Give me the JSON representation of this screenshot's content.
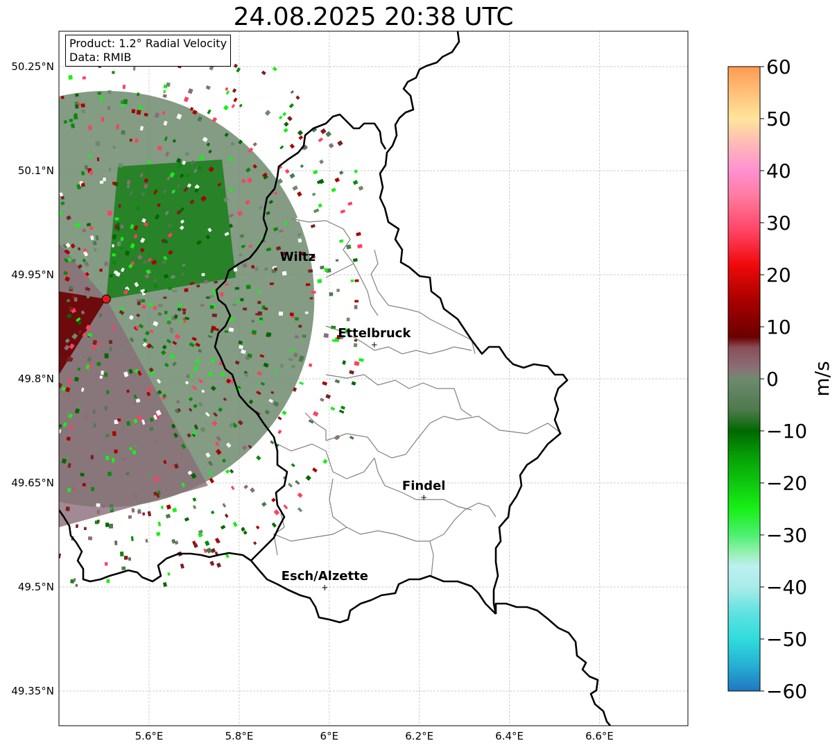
{
  "title": "24.08.2025 20:38 UTC",
  "info_box": {
    "product": "Product: 1.2° Radial Velocity",
    "data": "Data: RMIB"
  },
  "cities": [
    {
      "name": "Wiltz",
      "lon": 5.93,
      "lat": 49.97,
      "marker": false
    },
    {
      "name": "Ettelbruck",
      "lon": 6.1,
      "lat": 49.85,
      "marker": true
    },
    {
      "name": "Findel",
      "lon": 6.21,
      "lat": 49.63,
      "marker": true
    },
    {
      "name": "Esch/Alzette",
      "lon": 5.99,
      "lat": 49.5,
      "marker": true
    }
  ],
  "radar_site": {
    "lon": 5.505,
    "lat": 49.915,
    "color": "#e8161b"
  },
  "axes": {
    "lon_ticks": [
      {
        "value": 5.6,
        "label": "5.6°E"
      },
      {
        "value": 5.8,
        "label": "5.8°E"
      },
      {
        "value": 6.0,
        "label": "6°E"
      },
      {
        "value": 6.2,
        "label": "6.2°E"
      },
      {
        "value": 6.4,
        "label": "6.4°E"
      },
      {
        "value": 6.6,
        "label": "6.6°E"
      }
    ],
    "lat_ticks": [
      {
        "value": 50.25,
        "label": "50.25°N"
      },
      {
        "value": 50.1,
        "label": "50.1°N"
      },
      {
        "value": 49.95,
        "label": "49.95°N"
      },
      {
        "value": 49.8,
        "label": "49.8°N"
      },
      {
        "value": 49.65,
        "label": "49.65°N"
      },
      {
        "value": 49.5,
        "label": "49.5°N"
      },
      {
        "value": 49.35,
        "label": "49.35°N"
      }
    ],
    "lon_range": [
      5.4,
      6.8
    ],
    "lat_range": [
      49.3,
      50.3
    ],
    "grid": true
  },
  "colorbar": {
    "unit": "m/s",
    "range": [
      -60,
      60
    ],
    "ticks": [
      {
        "value": 60,
        "label": "60"
      },
      {
        "value": 50,
        "label": "50"
      },
      {
        "value": 40,
        "label": "40"
      },
      {
        "value": 30,
        "label": "30"
      },
      {
        "value": 20,
        "label": "20"
      },
      {
        "value": 10,
        "label": "10"
      },
      {
        "value": 0,
        "label": "0"
      },
      {
        "value": -10,
        "label": "−10"
      },
      {
        "value": -20,
        "label": "−20"
      },
      {
        "value": -30,
        "label": "−30"
      },
      {
        "value": -40,
        "label": "−40"
      },
      {
        "value": -50,
        "label": "−50"
      },
      {
        "value": -60,
        "label": "−60"
      }
    ],
    "stops": [
      {
        "value": -60,
        "color": "#1f77c0"
      },
      {
        "value": -55,
        "color": "#26b0d4"
      },
      {
        "value": -50,
        "color": "#2fdcdc"
      },
      {
        "value": -45,
        "color": "#5fe2e0"
      },
      {
        "value": -40,
        "color": "#a8ece9"
      },
      {
        "value": -36,
        "color": "#bdeff0"
      },
      {
        "value": -33,
        "color": "#8ef0a8"
      },
      {
        "value": -30,
        "color": "#4df070"
      },
      {
        "value": -25,
        "color": "#17f017"
      },
      {
        "value": -20,
        "color": "#0fc70f"
      },
      {
        "value": -15,
        "color": "#06a006"
      },
      {
        "value": -10,
        "color": "#006800"
      },
      {
        "value": -6,
        "color": "#4d7a4d"
      },
      {
        "value": 0,
        "color": "#6e8a6e"
      },
      {
        "value": 2,
        "color": "#8a7078"
      },
      {
        "value": 6,
        "color": "#8a4e58"
      },
      {
        "value": 8,
        "color": "#6a0000"
      },
      {
        "value": 15,
        "color": "#a80000"
      },
      {
        "value": 22,
        "color": "#f00a0a"
      },
      {
        "value": 28,
        "color": "#ff4060"
      },
      {
        "value": 35,
        "color": "#ff7aa0"
      },
      {
        "value": 40,
        "color": "#ff90d0"
      },
      {
        "value": 45,
        "color": "#ffb8b8"
      },
      {
        "value": 50,
        "color": "#ffe59a"
      },
      {
        "value": 55,
        "color": "#ffc07a"
      },
      {
        "value": 60,
        "color": "#ff9a50"
      }
    ]
  },
  "colors": {
    "border": "#000000",
    "canton_lines": "#808080",
    "grid": "#bbbbbb"
  }
}
